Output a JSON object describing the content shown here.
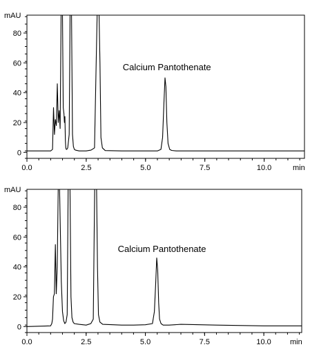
{
  "chart_data": [
    {
      "type": "line",
      "title": "",
      "xlabel": "min",
      "ylabel": "mAU",
      "xlim": [
        0,
        11.7
      ],
      "ylim": [
        -4,
        92
      ],
      "x_ticks": [
        0.0,
        2.5,
        5.0,
        7.5,
        10.0
      ],
      "x_tick_labels": [
        "0.0",
        "2.5",
        "5.0",
        "7.5",
        "10.0"
      ],
      "y_ticks": [
        0,
        20,
        40,
        60,
        80
      ],
      "y_tick_labels": [
        "0",
        "20",
        "40",
        "60",
        "80"
      ],
      "annotations": [
        {
          "text": "Calcium Pantothenate",
          "x": 5.9,
          "y": 55
        }
      ],
      "series": [
        {
          "x": [
            0,
            1.0,
            1.08,
            1.12,
            1.16,
            1.2,
            1.24,
            1.28,
            1.32,
            1.36,
            1.4,
            1.44,
            1.47,
            1.5,
            1.53,
            1.56,
            1.58,
            1.6,
            1.62,
            1.64,
            1.66,
            1.68,
            1.72,
            1.78,
            1.82,
            1.85,
            1.88,
            1.92,
            1.96,
            2.0,
            2.05,
            2.2,
            2.5,
            2.7,
            2.85,
            2.92,
            2.96,
            3.0,
            3.04,
            3.08,
            3.12,
            3.18,
            3.3,
            4.0,
            4.5,
            5.0,
            5.5,
            5.65,
            5.72,
            5.78,
            5.82,
            5.86,
            5.9,
            5.95,
            6.02,
            6.1,
            6.3,
            8.0,
            10.0,
            11.7
          ],
          "y": [
            1,
            1,
            2,
            30,
            12,
            22,
            18,
            46,
            20,
            28,
            16,
            92,
            92,
            92,
            30,
            26,
            20,
            24,
            8,
            3,
            2,
            2,
            3,
            12,
            92,
            92,
            92,
            12,
            4,
            2,
            1.5,
            1,
            1,
            1.5,
            3,
            60,
            92,
            92,
            92,
            60,
            10,
            3,
            1.2,
            1,
            1,
            1,
            1,
            2,
            10,
            35,
            50,
            44,
            20,
            6,
            2,
            1.3,
            1,
            1,
            1,
            1
          ]
        }
      ]
    },
    {
      "type": "line",
      "title": "",
      "xlabel": "min",
      "ylabel": "mAU",
      "xlim": [
        0,
        11.6
      ],
      "ylim": [
        -4,
        92
      ],
      "x_ticks": [
        0.0,
        2.5,
        5.0,
        7.5,
        10.0
      ],
      "x_tick_labels": [
        "0.0",
        "2.5",
        "5.0",
        "7.5",
        "10.0"
      ],
      "y_ticks": [
        0,
        20,
        40,
        60,
        80
      ],
      "y_tick_labels": [
        "0",
        "20",
        "40",
        "60",
        "80"
      ],
      "annotations": [
        {
          "text": "Calcium Pantothenate",
          "x": 5.7,
          "y": 50
        }
      ],
      "series": [
        {
          "x": [
            0,
            1.0,
            1.05,
            1.08,
            1.12,
            1.16,
            1.2,
            1.24,
            1.28,
            1.32,
            1.35,
            1.38,
            1.45,
            1.5,
            1.55,
            1.6,
            1.65,
            1.7,
            1.74,
            1.78,
            1.82,
            1.86,
            1.9,
            1.95,
            2.0,
            2.2,
            2.5,
            2.7,
            2.8,
            2.86,
            2.9,
            2.94,
            2.98,
            3.02,
            3.08,
            3.2,
            4.0,
            4.5,
            5.0,
            5.3,
            5.38,
            5.44,
            5.48,
            5.52,
            5.56,
            5.6,
            5.66,
            5.75,
            6.0,
            6.5,
            8.0,
            10.0,
            11.6
          ],
          "y": [
            0,
            0.5,
            2,
            5,
            20,
            22,
            55,
            22,
            40,
            92,
            92,
            92,
            30,
            10,
            4,
            2,
            3,
            8,
            92,
            92,
            92,
            20,
            6,
            3,
            2,
            1.5,
            1,
            2,
            5,
            92,
            92,
            92,
            40,
            8,
            3,
            1.5,
            1,
            1,
            1.2,
            2,
            10,
            30,
            46,
            38,
            16,
            5,
            2,
            1,
            1,
            1.5,
            1,
            0.5,
            0.5
          ]
        }
      ]
    }
  ]
}
